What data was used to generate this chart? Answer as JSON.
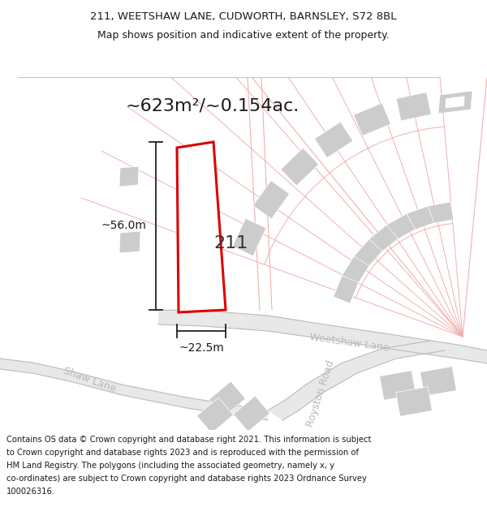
{
  "title_line1": "211, WEETSHAW LANE, CUDWORTH, BARNSLEY, S72 8BL",
  "title_line2": "Map shows position and indicative extent of the property.",
  "area_label": "~623m²/~0.154ac.",
  "label_211": "211",
  "dim_height": "~56.0m",
  "dim_width": "~22.5m",
  "road_label_weetshaw": "Weetshaw Lane",
  "road_label_shaw": "Shaw Lane",
  "road_label_royston": "Royston Road",
  "footer_lines": [
    "Contains OS data © Crown copyright and database right 2021. This information is subject",
    "to Crown copyright and database rights 2023 and is reproduced with the permission of",
    "HM Land Registry. The polygons (including the associated geometry, namely x, y",
    "co-ordinates) are subject to Crown copyright and database rights 2023 Ordnance Survey",
    "100026316."
  ],
  "bg_color": "#ffffff",
  "highlight_color": "#dd0000",
  "building_color": "#cccccc",
  "road_fill_color": "#e8e8e8",
  "plot_line_color": "#f0b0b0",
  "road_line_color": "#bbbbbb",
  "road_label_color": "#b8b8b8"
}
